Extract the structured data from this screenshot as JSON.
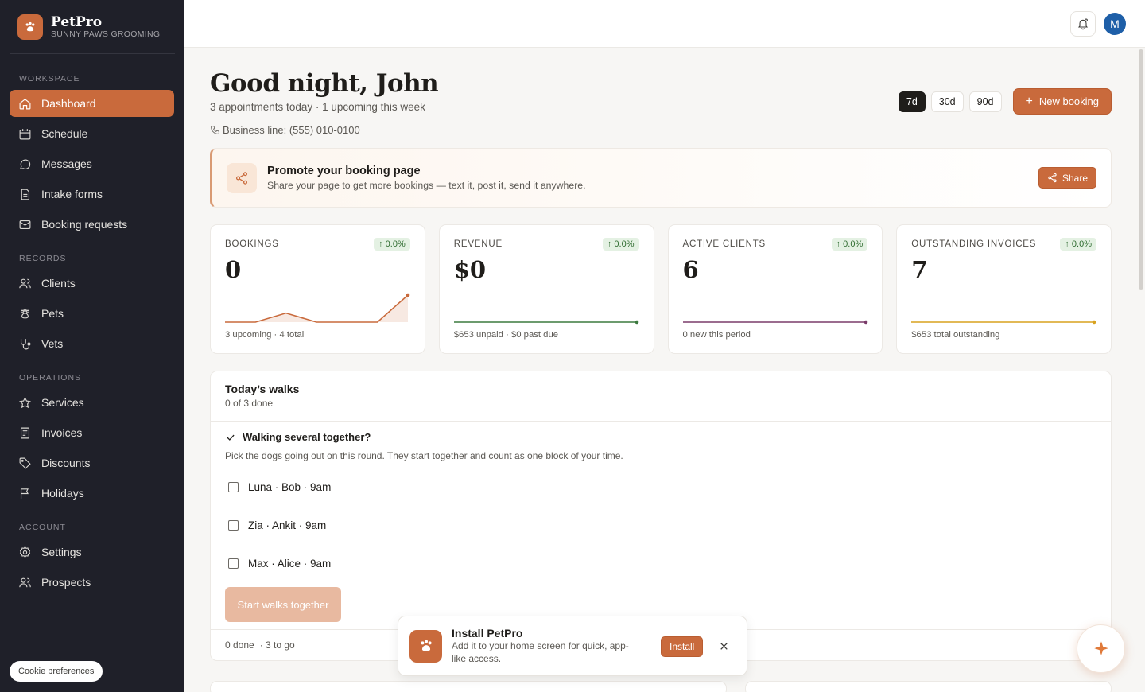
{
  "brand": {
    "name": "PetPro",
    "subtitle": "SUNNY PAWS GROOMING"
  },
  "sidebar": {
    "sections": [
      {
        "title": "WORKSPACE",
        "items": [
          {
            "label": "Dashboard",
            "icon": "home-icon",
            "active": true
          },
          {
            "label": "Schedule",
            "icon": "calendar-icon"
          },
          {
            "label": "Messages",
            "icon": "chat-icon"
          },
          {
            "label": "Intake forms",
            "icon": "document-icon"
          },
          {
            "label": "Booking requests",
            "icon": "mail-icon"
          }
        ]
      },
      {
        "title": "RECORDS",
        "items": [
          {
            "label": "Clients",
            "icon": "users-icon"
          },
          {
            "label": "Pets",
            "icon": "paw-icon"
          },
          {
            "label": "Vets",
            "icon": "stethoscope-icon"
          }
        ]
      },
      {
        "title": "OPERATIONS",
        "items": [
          {
            "label": "Services",
            "icon": "star-icon"
          },
          {
            "label": "Invoices",
            "icon": "receipt-icon"
          },
          {
            "label": "Discounts",
            "icon": "tag-icon"
          },
          {
            "label": "Holidays",
            "icon": "flag-icon"
          }
        ]
      },
      {
        "title": "ACCOUNT",
        "items": [
          {
            "label": "Settings",
            "icon": "gear-icon"
          },
          {
            "label": "Prospects",
            "icon": "users-icon"
          }
        ]
      }
    ],
    "cookie_label": "Cookie preferences"
  },
  "topbar": {
    "avatar_initial": "M"
  },
  "header": {
    "greeting": "Good night, John",
    "subtitle": "3 appointments today · 1 upcoming this week",
    "phone": "Business line: (555) 010-0100",
    "ranges": [
      "7d",
      "30d",
      "90d"
    ],
    "selected_range": "7d",
    "new_booking_label": "New booking"
  },
  "promo": {
    "title": "Promote your booking page",
    "text": "Share your page to get more bookings — text it, post it, send it anywhere.",
    "share_label": "Share"
  },
  "stats": [
    {
      "label": "BOOKINGS",
      "badge": "↑ 0.0%",
      "value": "0",
      "footer": "3 upcoming · 4 total",
      "color": "#c96a3c",
      "trend": [
        0,
        0,
        1,
        0,
        0,
        0,
        3
      ]
    },
    {
      "label": "REVENUE",
      "badge": "↑ 0.0%",
      "value": "$0",
      "footer": "$653 unpaid · $0 past due",
      "color": "#3c7a3e",
      "trend": [
        0,
        0,
        0,
        0,
        0,
        0,
        0
      ]
    },
    {
      "label": "ACTIVE CLIENTS",
      "badge": "↑ 0.0%",
      "value": "6",
      "footer": "0 new this period",
      "color": "#7a3c6a",
      "trend": [
        0,
        0,
        0,
        0,
        0,
        0,
        0
      ]
    },
    {
      "label": "OUTSTANDING INVOICES",
      "badge": "↑ 0.0%",
      "value": "7",
      "footer": "$653 total outstanding",
      "color": "#d8a21f",
      "trend": [
        0,
        0,
        0,
        0,
        0,
        0,
        0
      ]
    }
  ],
  "walks": {
    "title": "Today’s walks",
    "subtitle": "0 of 3 done",
    "several_label": "Walking several together?",
    "several_help": "Pick the dogs going out on this round. They start together and count as one block of your time.",
    "dogs": [
      "Luna · Bob · 9am",
      "Zia · Ankit · 9am",
      "Max · Alice · 9am"
    ],
    "start_label": "Start walks together",
    "footer_done": "0 done",
    "footer_togo": "· 3 to go"
  },
  "install": {
    "title": "Install PetPro",
    "text": "Add it to your home screen for quick, app-like access.",
    "button_label": "Install"
  }
}
